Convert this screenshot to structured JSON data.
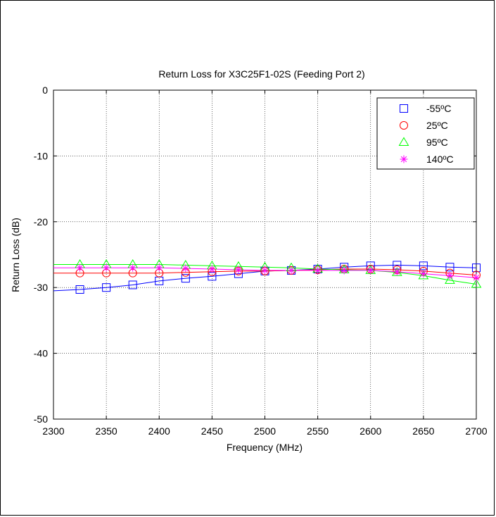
{
  "chart_data": {
    "type": "line",
    "title": "Return Loss for X3C25F1-02S (Feeding Port 2)",
    "xlabel": "Frequency (MHz)",
    "ylabel": "Return Loss (dB)",
    "xlim": [
      2300,
      2700
    ],
    "ylim": [
      -50,
      0
    ],
    "xticks": [
      2300,
      2350,
      2400,
      2450,
      2500,
      2550,
      2600,
      2650,
      2700
    ],
    "yticks": [
      0,
      -10,
      -20,
      -30,
      -40,
      -50
    ],
    "grid": true,
    "legend_position": "top-right",
    "x": [
      2300,
      2325,
      2350,
      2375,
      2400,
      2425,
      2450,
      2475,
      2500,
      2525,
      2550,
      2575,
      2600,
      2625,
      2650,
      2675,
      2700
    ],
    "marker_x": [
      2325,
      2350,
      2375,
      2400,
      2425,
      2450,
      2475,
      2500,
      2525,
      2550,
      2575,
      2600,
      2625,
      2650,
      2675,
      2700
    ],
    "series": [
      {
        "name": "-55ºC",
        "color": "#0000ff",
        "marker": "square",
        "values": [
          -30.5,
          -30.3,
          -30.0,
          -29.6,
          -29.0,
          -28.6,
          -28.3,
          -27.9,
          -27.5,
          -27.4,
          -27.2,
          -26.9,
          -26.7,
          -26.6,
          -26.7,
          -26.9,
          -27.0
        ]
      },
      {
        "name": "25ºC",
        "color": "#ff0000",
        "marker": "circle",
        "values": [
          -27.8,
          -27.8,
          -27.8,
          -27.8,
          -27.8,
          -27.7,
          -27.6,
          -27.5,
          -27.5,
          -27.4,
          -27.3,
          -27.2,
          -27.2,
          -27.3,
          -27.5,
          -27.8,
          -28.1
        ]
      },
      {
        "name": "95ºC",
        "color": "#00ff00",
        "marker": "triangle",
        "values": [
          -26.5,
          -26.5,
          -26.5,
          -26.5,
          -26.5,
          -26.6,
          -26.7,
          -26.8,
          -26.9,
          -27.0,
          -27.2,
          -27.3,
          -27.4,
          -27.7,
          -28.2,
          -28.9,
          -29.5
        ]
      },
      {
        "name": "140ºC",
        "color": "#ff00ff",
        "marker": "star",
        "values": [
          -27.0,
          -27.0,
          -27.0,
          -27.0,
          -27.0,
          -27.1,
          -27.2,
          -27.3,
          -27.4,
          -27.4,
          -27.4,
          -27.4,
          -27.4,
          -27.6,
          -27.9,
          -28.2,
          -28.5
        ]
      }
    ]
  }
}
